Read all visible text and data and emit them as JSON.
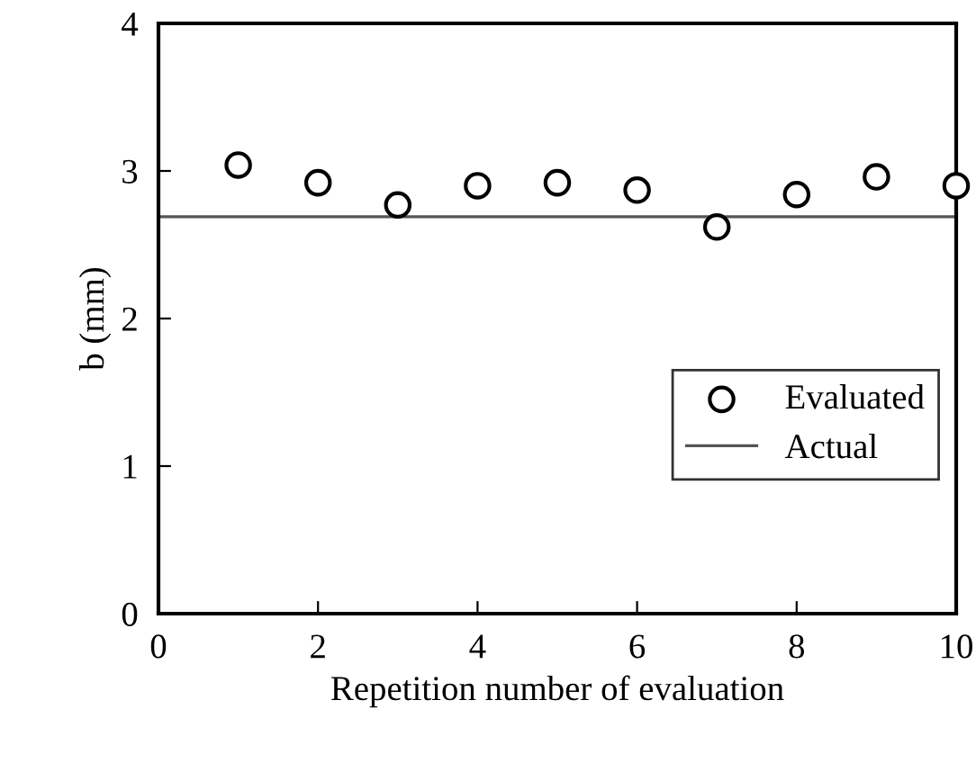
{
  "chart_data": {
    "type": "scatter",
    "xlabel": "Repetition number of evaluation",
    "ylabel": "b (mm)",
    "xlim": [
      0,
      10
    ],
    "ylim": [
      0,
      4
    ],
    "xticks": [
      0,
      2,
      4,
      6,
      8,
      10
    ],
    "yticks": [
      0,
      1,
      2,
      3,
      4
    ],
    "grid": false,
    "legend": "right",
    "series": [
      {
        "name": "Evaluated",
        "marker": "circle",
        "color": "#000000",
        "x": [
          1,
          2,
          3,
          4,
          5,
          6,
          7,
          8,
          9,
          10
        ],
        "values": [
          3.04,
          2.92,
          2.77,
          2.9,
          2.92,
          2.87,
          2.62,
          2.84,
          2.96,
          2.9
        ]
      },
      {
        "name": "Actual",
        "type": "line",
        "marker": "none",
        "color": "#555555",
        "x": [
          0,
          10
        ],
        "values": [
          2.69,
          2.69
        ]
      }
    ]
  }
}
